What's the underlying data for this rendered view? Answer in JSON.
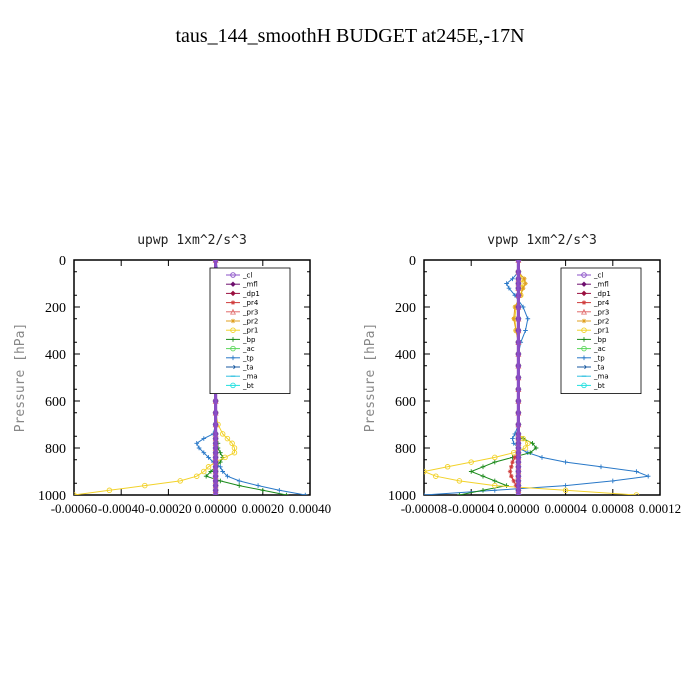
{
  "title": "taus_144_smoothH  BUDGET at245E,-17N",
  "chart_data": [
    {
      "type": "line",
      "title": "upwp   1xm^2/s^3",
      "ylabel": "Pressure [hPa]",
      "xlabel": "",
      "xlim": [
        -0.0006,
        0.0004
      ],
      "ylim": [
        1000,
        0
      ],
      "x_ticks": [
        -0.0006,
        -0.0004,
        -0.0002,
        0.0,
        0.0002,
        0.0004
      ],
      "x_tick_labels": [
        "-0.00060",
        "-0.00040",
        "-0.00020",
        "0.00000",
        "0.00020",
        "0.00040"
      ],
      "y_ticks": [
        0,
        200,
        400,
        600,
        800,
        1000
      ],
      "y_tick_labels": [
        "0",
        "200",
        "400",
        "600",
        "800",
        "1000"
      ],
      "legend_position": "top-right",
      "levels": [
        0,
        50,
        100,
        150,
        200,
        250,
        300,
        350,
        400,
        450,
        500,
        550,
        600,
        650,
        700,
        740,
        760,
        780,
        800,
        820,
        840,
        860,
        880,
        900,
        920,
        940,
        960,
        980,
        1000
      ],
      "series": [
        {
          "name": "_cl",
          "color": "#8a4fc7",
          "marker": "circle",
          "values": [
            0,
            0,
            0,
            0,
            0,
            0,
            0,
            0,
            0,
            0,
            0,
            0,
            0,
            0,
            0,
            0,
            0,
            0,
            0,
            0,
            0,
            0,
            0,
            0,
            0,
            0,
            0,
            0,
            0
          ]
        },
        {
          "name": "_mfl",
          "color": "#6e0f6e",
          "marker": "diamond",
          "values": [
            0,
            0,
            0,
            0,
            0,
            0,
            0,
            0,
            0,
            0,
            0,
            0,
            0,
            0,
            0,
            0,
            0,
            0,
            0,
            0,
            0,
            0,
            0,
            0,
            0,
            0,
            0,
            0,
            0
          ]
        },
        {
          "name": "_dp1",
          "color": "#9b1040",
          "marker": "diamond",
          "values": [
            0,
            0,
            0,
            0,
            0,
            0,
            0,
            0,
            0,
            0,
            0,
            0,
            0,
            0,
            0,
            0,
            0,
            0,
            0,
            0,
            0,
            0,
            0,
            0,
            0,
            0,
            0,
            0,
            0
          ]
        },
        {
          "name": "_pr4",
          "color": "#d03a3a",
          "marker": "star",
          "values": [
            0,
            0,
            0,
            0,
            0,
            0,
            0,
            0,
            0,
            0,
            0,
            0,
            0,
            0,
            0,
            0,
            0,
            0,
            0,
            0,
            0,
            0,
            0,
            0,
            0,
            0,
            0,
            0,
            0
          ]
        },
        {
          "name": "_pr3",
          "color": "#e06a6a",
          "marker": "triangle",
          "values": [
            0,
            0,
            0,
            0,
            0,
            0,
            0,
            0,
            0,
            0,
            0,
            0,
            0,
            0,
            0,
            0,
            0,
            0,
            0,
            0,
            0,
            0,
            0,
            0,
            0,
            0,
            0,
            0,
            0
          ]
        },
        {
          "name": "_pr2",
          "color": "#e0a020",
          "marker": "star",
          "values": [
            0,
            0,
            0,
            0,
            0,
            0,
            0,
            0,
            0,
            0,
            0,
            0,
            0,
            0,
            0,
            0,
            0,
            0,
            0,
            0,
            0,
            0,
            0,
            0,
            0,
            0,
            0,
            0,
            0
          ]
        },
        {
          "name": "_pr1",
          "color": "#f2d22a",
          "marker": "circle",
          "values": [
            0,
            0,
            0,
            0,
            0,
            0,
            -1e-05,
            -1e-05,
            0,
            0,
            0,
            0,
            0,
            0,
            1e-05,
            3e-05,
            5e-05,
            7e-05,
            8e-05,
            8e-05,
            4e-05,
            0.0,
            -3e-05,
            -5e-05,
            -8e-05,
            -0.00015,
            -0.0003,
            -0.00045,
            -0.0006
          ]
        },
        {
          "name": "_bp",
          "color": "#1a8a1a",
          "marker": "plus",
          "values": [
            0,
            0,
            0,
            0,
            0,
            0,
            0,
            0,
            0,
            0,
            0,
            0,
            0,
            0,
            0,
            0,
            0,
            1e-05,
            1e-05,
            2e-05,
            3e-05,
            2e-05,
            0.0,
            -2e-05,
            -4e-05,
            2e-05,
            0.0001,
            0.0002,
            0.0003
          ]
        },
        {
          "name": "_ac",
          "color": "#5ad75a",
          "marker": "circle",
          "values": [
            0,
            0,
            0,
            0,
            0,
            0,
            0,
            0,
            0,
            0,
            0,
            0,
            0,
            0,
            0,
            0,
            0,
            0,
            0,
            0,
            0,
            0,
            0,
            0,
            0,
            0,
            0,
            0,
            0
          ]
        },
        {
          "name": "_tp",
          "color": "#2878c8",
          "marker": "plus",
          "values": [
            0,
            1e-05,
            1e-05,
            1e-05,
            0,
            0,
            -1e-05,
            -1e-05,
            0,
            0,
            0,
            0,
            0,
            0,
            0,
            -1e-05,
            -5e-05,
            -8e-05,
            -7e-05,
            -5e-05,
            -3e-05,
            -1e-05,
            2e-05,
            3e-05,
            5e-05,
            0.0001,
            0.00018,
            0.00027,
            0.00038
          ]
        },
        {
          "name": "_ta",
          "color": "#1a5aa0",
          "marker": "arrow",
          "values": [
            0,
            0,
            0,
            0,
            0,
            0,
            0,
            0,
            0,
            0,
            0,
            0,
            0,
            0,
            0,
            0,
            0,
            0,
            0,
            0,
            0,
            0,
            0,
            0,
            0,
            0,
            0,
            0,
            0
          ]
        },
        {
          "name": "_ma",
          "color": "#30c0e0",
          "marker": "dash",
          "values": [
            0,
            0,
            0,
            0,
            0,
            0,
            0,
            0,
            0,
            0,
            0,
            0,
            0,
            0,
            0,
            0,
            0,
            0,
            0,
            0,
            0,
            0,
            0,
            0,
            0,
            0,
            0,
            0,
            0
          ]
        },
        {
          "name": "_bt",
          "color": "#20e0e0",
          "marker": "circle",
          "values": [
            0,
            0,
            0,
            0,
            0,
            0,
            0,
            0,
            0,
            0,
            0,
            0,
            0,
            0,
            0,
            0,
            0,
            0,
            0,
            0,
            0,
            0,
            0,
            0,
            0,
            0,
            0,
            0,
            0
          ]
        }
      ]
    },
    {
      "type": "line",
      "title": "vpwp   1xm^2/s^3",
      "ylabel": "Pressure [hPa]",
      "xlabel": "",
      "xlim": [
        -8e-05,
        0.00012
      ],
      "ylim": [
        1000,
        0
      ],
      "x_ticks": [
        -8e-05,
        -4e-05,
        0.0,
        4e-05,
        8e-05,
        0.00012
      ],
      "x_tick_labels": [
        "-0.00008",
        "-0.00004",
        "0.00000",
        "0.00004",
        "0.00008",
        "0.00012"
      ],
      "y_ticks": [
        0,
        200,
        400,
        600,
        800,
        1000
      ],
      "y_tick_labels": [
        "0",
        "200",
        "400",
        "600",
        "800",
        "1000"
      ],
      "legend_position": "top-right",
      "levels": [
        0,
        50,
        80,
        100,
        120,
        150,
        200,
        250,
        300,
        350,
        400,
        450,
        500,
        550,
        600,
        650,
        700,
        740,
        760,
        780,
        800,
        820,
        840,
        860,
        880,
        900,
        920,
        940,
        960,
        980,
        1000
      ],
      "series": [
        {
          "name": "_cl",
          "color": "#8a4fc7",
          "marker": "circle",
          "values": [
            0,
            0,
            0,
            0,
            0,
            0,
            0,
            0,
            0,
            0,
            0,
            0,
            0,
            0,
            0,
            0,
            0,
            0,
            0,
            0,
            0,
            0,
            0,
            0,
            0,
            0,
            0,
            0,
            0,
            0,
            0
          ]
        },
        {
          "name": "_mfl",
          "color": "#6e0f6e",
          "marker": "diamond",
          "values": [
            0,
            0,
            0,
            0,
            0,
            0,
            0,
            0,
            0,
            0,
            0,
            0,
            0,
            0,
            0,
            0,
            0,
            0,
            0,
            0,
            0,
            0,
            0,
            0,
            0,
            0,
            0,
            0,
            0,
            0,
            0
          ]
        },
        {
          "name": "_dp1",
          "color": "#9b1040",
          "marker": "diamond",
          "values": [
            0,
            0,
            0,
            0,
            0,
            0,
            0,
            0,
            0,
            0,
            0,
            0,
            0,
            0,
            0,
            0,
            0,
            0,
            0,
            0,
            0,
            0,
            0,
            0,
            0,
            0,
            0,
            0,
            0,
            0,
            0
          ]
        },
        {
          "name": "_pr4",
          "color": "#d03a3a",
          "marker": "star",
          "values": [
            0,
            0,
            0,
            0,
            0,
            0,
            0,
            0,
            0,
            0,
            0,
            0,
            0,
            0,
            0,
            0,
            0,
            0,
            0,
            0,
            0,
            0,
            -3e-06,
            -5e-06,
            -6e-06,
            -7e-06,
            -6e-06,
            -4e-06,
            -2e-06,
            0,
            0
          ]
        },
        {
          "name": "_pr3",
          "color": "#e06a6a",
          "marker": "triangle",
          "values": [
            0,
            0,
            0,
            0,
            0,
            0,
            0,
            0,
            0,
            0,
            0,
            0,
            0,
            0,
            0,
            0,
            0,
            0,
            0,
            0,
            0,
            0,
            0,
            0,
            0,
            0,
            0,
            0,
            0,
            0,
            0
          ]
        },
        {
          "name": "_pr2",
          "color": "#e0a020",
          "marker": "star",
          "values": [
            0,
            0,
            5e-06,
            6e-06,
            4e-06,
            2e-06,
            -3e-06,
            -4e-06,
            -2e-06,
            0,
            0,
            0,
            0,
            0,
            0,
            0,
            0,
            0,
            0,
            0,
            0,
            0,
            0,
            0,
            0,
            0,
            0,
            0,
            0,
            0,
            0
          ]
        },
        {
          "name": "_pr1",
          "color": "#f2d22a",
          "marker": "circle",
          "values": [
            0,
            0,
            3e-06,
            4e-06,
            3e-06,
            2e-06,
            -2e-06,
            -3e-06,
            -2e-06,
            0,
            0,
            0,
            0,
            0,
            0,
            0,
            0,
            0,
            4e-06,
            8e-06,
            6e-06,
            -4e-06,
            -2e-05,
            -4e-05,
            -6e-05,
            -8e-05,
            -7e-05,
            -5e-05,
            -2e-05,
            4e-05,
            0.0001
          ]
        },
        {
          "name": "_bp",
          "color": "#1a8a1a",
          "marker": "plus",
          "values": [
            0,
            0,
            0,
            0,
            0,
            0,
            0,
            0,
            0,
            0,
            0,
            0,
            0,
            0,
            0,
            0,
            0,
            0,
            4e-06,
            1.2e-05,
            1.5e-05,
            1e-05,
            -5e-06,
            -2e-05,
            -3e-05,
            -4e-05,
            -3e-05,
            -2e-05,
            -1e-05,
            -3e-05,
            -5e-05
          ]
        },
        {
          "name": "_ac",
          "color": "#5ad75a",
          "marker": "circle",
          "values": [
            0,
            0,
            0,
            0,
            0,
            0,
            0,
            0,
            0,
            0,
            0,
            0,
            0,
            0,
            0,
            0,
            0,
            0,
            0,
            0,
            0,
            0,
            0,
            0,
            0,
            0,
            0,
            0,
            0,
            0,
            0
          ]
        },
        {
          "name": "_tp",
          "color": "#2878c8",
          "marker": "plus",
          "values": [
            0,
            0,
            -5e-06,
            -1e-05,
            -8e-06,
            -3e-06,
            4e-06,
            8e-06,
            6e-06,
            2e-06,
            0,
            0,
            0,
            0,
            0,
            0,
            0,
            -3e-06,
            -5e-06,
            -4e-06,
            0,
            8e-06,
            2e-05,
            4e-05,
            7e-05,
            0.0001,
            0.00011,
            8e-05,
            4e-05,
            -2e-05,
            -8e-05
          ]
        },
        {
          "name": "_ta",
          "color": "#1a5aa0",
          "marker": "arrow",
          "values": [
            0,
            0,
            0,
            0,
            0,
            0,
            0,
            0,
            0,
            0,
            0,
            0,
            0,
            0,
            0,
            0,
            0,
            0,
            0,
            0,
            0,
            0,
            0,
            0,
            0,
            0,
            0,
            0,
            0,
            0,
            0
          ]
        },
        {
          "name": "_ma",
          "color": "#30c0e0",
          "marker": "dash",
          "values": [
            0,
            0,
            0,
            0,
            0,
            0,
            0,
            0,
            0,
            0,
            0,
            0,
            0,
            0,
            0,
            0,
            0,
            0,
            0,
            0,
            0,
            0,
            0,
            0,
            0,
            0,
            0,
            0,
            0,
            0,
            0
          ]
        },
        {
          "name": "_bt",
          "color": "#20e0e0",
          "marker": "circle",
          "values": [
            0,
            0,
            0,
            0,
            0,
            0,
            0,
            0,
            0,
            0,
            0,
            0,
            0,
            0,
            0,
            0,
            0,
            0,
            0,
            0,
            0,
            0,
            0,
            0,
            0,
            0,
            0,
            0,
            0,
            0,
            0
          ]
        }
      ]
    }
  ]
}
